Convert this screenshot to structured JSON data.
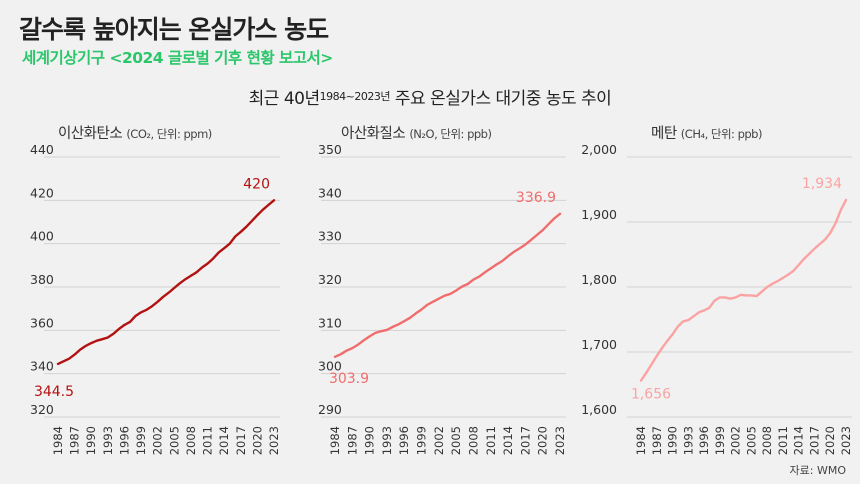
{
  "header": {
    "title": "갈수록 높아지는 온실가스 농도",
    "subtitle": "세계기상기구 <2024 글로벌 기후 현황 보고서>",
    "heading_main": "최근 40년",
    "heading_years": "1984~2023년",
    "heading_rest": " 주요 온실가스 대기중 농도 추이"
  },
  "source": "자료: WMO",
  "colors": {
    "co2": "#b31212",
    "n2o": "#f16d6d",
    "ch4": "#fba3a3",
    "subtitle": "#2cc66b"
  },
  "chart_data": [
    {
      "type": "line",
      "name_main": "이산화탄소",
      "name_unit": "(CO₂, 단위: ppm)",
      "ylim": [
        320,
        440
      ],
      "yticks": [
        "320",
        "340",
        "360",
        "380",
        "400",
        "420",
        "440"
      ],
      "xticks": [
        "1984",
        "1987",
        "1990",
        "1993",
        "1996",
        "1999",
        "2002",
        "2005",
        "2008",
        "2011",
        "2014",
        "2017",
        "2020",
        "2023"
      ],
      "start_label": "344.5",
      "end_label": "420",
      "series": [
        {
          "x": [
            1984,
            1985,
            1986,
            1987,
            1988,
            1989,
            1990,
            1991,
            1992,
            1993,
            1994,
            1995,
            1996,
            1997,
            1998,
            1999,
            2000,
            2001,
            2002,
            2003,
            2004,
            2005,
            2006,
            2007,
            2008,
            2009,
            2010,
            2011,
            2012,
            2013,
            2014,
            2015,
            2016,
            2017,
            2018,
            2019,
            2020,
            2021,
            2022,
            2023
          ],
          "values": [
            344.5,
            345.7,
            346.9,
            348.8,
            351.1,
            352.8,
            354.1,
            355.2,
            355.9,
            356.7,
            358.4,
            360.6,
            362.5,
            363.9,
            366.6,
            368.3,
            369.5,
            371.2,
            373.2,
            375.5,
            377.4,
            379.6,
            381.7,
            383.6,
            385.2,
            386.8,
            389.0,
            390.8,
            393.1,
            395.9,
            397.9,
            400.0,
            403.3,
            405.5,
            407.8,
            410.4,
            413.2,
            415.7,
            417.9,
            420.0
          ]
        }
      ]
    },
    {
      "type": "line",
      "name_main": "아산화질소",
      "name_unit": "(N₂O, 단위: ppb)",
      "ylim": [
        290,
        350
      ],
      "yticks": [
        "290",
        "300",
        "310",
        "320",
        "330",
        "340",
        "350"
      ],
      "xticks": [
        "1984",
        "1987",
        "1990",
        "1993",
        "1996",
        "1999",
        "2002",
        "2005",
        "2008",
        "2011",
        "2014",
        "2017",
        "2020",
        "2023"
      ],
      "start_label": "303.9",
      "end_label": "336.9",
      "series": [
        {
          "x": [
            1984,
            1985,
            1986,
            1987,
            1988,
            1989,
            1990,
            1991,
            1992,
            1993,
            1994,
            1995,
            1996,
            1997,
            1998,
            1999,
            2000,
            2001,
            2002,
            2003,
            2004,
            2005,
            2006,
            2007,
            2008,
            2009,
            2010,
            2011,
            2012,
            2013,
            2014,
            2015,
            2016,
            2017,
            2018,
            2019,
            2020,
            2021,
            2022,
            2023
          ],
          "values": [
            303.9,
            304.5,
            305.3,
            305.9,
            306.7,
            307.7,
            308.6,
            309.4,
            309.8,
            310.1,
            310.8,
            311.4,
            312.1,
            312.9,
            313.9,
            314.8,
            315.9,
            316.6,
            317.3,
            318.0,
            318.4,
            319.2,
            320.1,
            320.7,
            321.7,
            322.4,
            323.4,
            324.3,
            325.2,
            326.0,
            327.1,
            328.1,
            328.9,
            329.8,
            330.9,
            332.0,
            333.1,
            334.5,
            335.8,
            336.9
          ]
        }
      ]
    },
    {
      "type": "line",
      "name_main": "메탄",
      "name_unit": "(CH₄, 단위: ppb)",
      "ylim": [
        1600,
        2000
      ],
      "yticks": [
        "1,600",
        "1,700",
        "1,800",
        "1,900",
        "2,000"
      ],
      "xticks": [
        "1984",
        "1987",
        "1990",
        "1993",
        "1996",
        "1999",
        "2002",
        "2005",
        "2008",
        "2011",
        "2014",
        "2017",
        "2020",
        "2023"
      ],
      "start_label": "1,656",
      "end_label": "1,934",
      "series": [
        {
          "x": [
            1984,
            1985,
            1986,
            1987,
            1988,
            1989,
            1990,
            1991,
            1992,
            1993,
            1994,
            1995,
            1996,
            1997,
            1998,
            1999,
            2000,
            2001,
            2002,
            2003,
            2004,
            2005,
            2006,
            2007,
            2008,
            2009,
            2010,
            2011,
            2012,
            2013,
            2014,
            2015,
            2016,
            2017,
            2018,
            2019,
            2020,
            2021,
            2022,
            2023
          ],
          "values": [
            1656,
            1668,
            1681,
            1694,
            1706,
            1717,
            1727,
            1739,
            1747,
            1749,
            1755,
            1761,
            1764,
            1768,
            1779,
            1784,
            1784,
            1782,
            1784,
            1788,
            1787,
            1787,
            1786,
            1793,
            1800,
            1805,
            1809,
            1814,
            1819,
            1825,
            1834,
            1843,
            1851,
            1859,
            1866,
            1873,
            1883,
            1898,
            1918,
            1934
          ]
        }
      ]
    }
  ]
}
